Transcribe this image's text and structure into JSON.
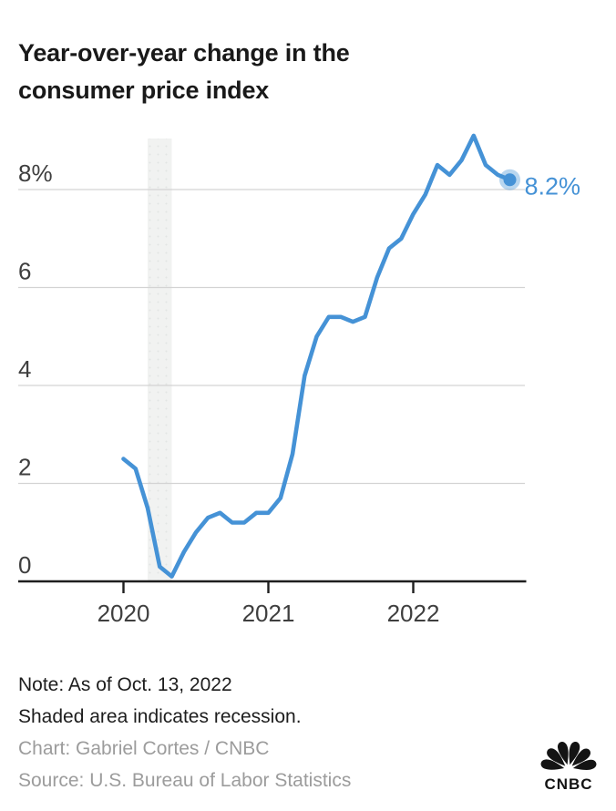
{
  "title": "Year-over-year change in the consumer price index",
  "footer": {
    "note_line_1": "Note: As of Oct. 13, 2022",
    "note_line_2": "Shaded area indicates recession.",
    "chart_credit": "Chart: Gabriel Cortes / CNBC",
    "source_credit": "Source: U.S. Bureau of Labor Statistics"
  },
  "branding": {
    "wordmark": "CNBC"
  },
  "colors": {
    "line": "#4592d6",
    "end_label": "#4592d6",
    "dot": "#4592d6",
    "dot_halo_opacity": "0.38",
    "grid": "#d3d3d3",
    "axis": "#1e1e1e",
    "recession_band": "#f1f2f1",
    "recession_band_dots": "#e2e5e3",
    "title_text": "#191919",
    "note_text": "#1d1d1d",
    "credit_text": "#9c9c9c",
    "tick_label": "#3f3f3f"
  },
  "chart_data": {
    "type": "line",
    "title": "Year-over-year change in the consumer price index",
    "series_name": "Consumer price index, % change year over year",
    "unit": "percent",
    "x": [
      "2020-01",
      "2020-02",
      "2020-03",
      "2020-04",
      "2020-05",
      "2020-06",
      "2020-07",
      "2020-08",
      "2020-09",
      "2020-10",
      "2020-11",
      "2020-12",
      "2021-01",
      "2021-02",
      "2021-03",
      "2021-04",
      "2021-05",
      "2021-06",
      "2021-07",
      "2021-08",
      "2021-09",
      "2021-10",
      "2021-11",
      "2021-12",
      "2022-01",
      "2022-02",
      "2022-03",
      "2022-04",
      "2022-05",
      "2022-06",
      "2022-07",
      "2022-08",
      "2022-09"
    ],
    "values": [
      2.5,
      2.3,
      1.5,
      0.3,
      0.1,
      0.6,
      1.0,
      1.3,
      1.4,
      1.2,
      1.2,
      1.4,
      1.4,
      1.7,
      2.6,
      4.2,
      5.0,
      5.4,
      5.4,
      5.3,
      5.4,
      6.2,
      6.8,
      7.0,
      7.5,
      7.9,
      8.5,
      8.3,
      8.6,
      9.1,
      8.5,
      8.3,
      8.2
    ],
    "last_value": 8.2,
    "end_label": "8.2%",
    "ytick_labels": [
      "8%",
      "6",
      "4",
      "2",
      "0"
    ],
    "ytick_values": [
      8,
      6,
      4,
      2,
      0
    ],
    "xtick_labels": [
      "2020",
      "2021",
      "2022"
    ],
    "xtick_month_indices": [
      0,
      12,
      24
    ],
    "ylim": [
      0,
      9.35
    ],
    "grid": "horizontal",
    "legend": "none",
    "recession_band": {
      "start_month_index": 2,
      "end_month_index": 4,
      "meaning": "recession"
    }
  }
}
